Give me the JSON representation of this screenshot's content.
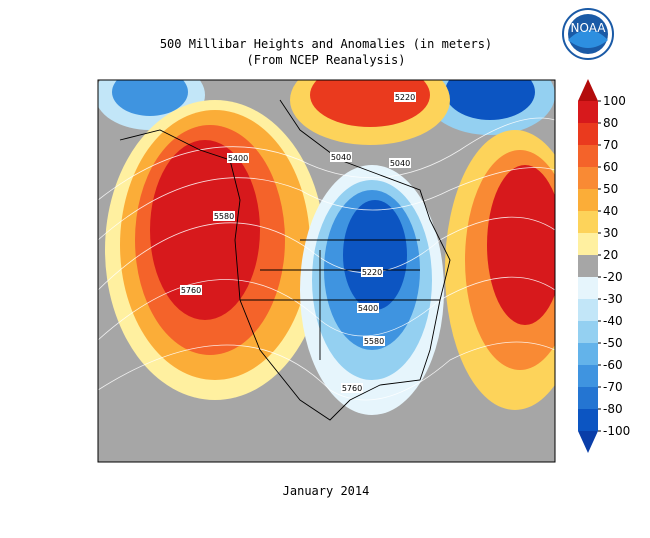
{
  "header": {
    "title": "500 Millibar Heights and Anomalies (in meters)",
    "subtitle": "(From NCEP Reanalysis)",
    "logo": "NOAA"
  },
  "map": {
    "contour_labels": [
      "5220",
      "5400",
      "5040",
      "5040",
      "5580",
      "5220",
      "5760",
      "5400",
      "5580",
      "5760"
    ]
  },
  "colorbar": {
    "ticks": [
      100,
      80,
      70,
      60,
      50,
      40,
      30,
      20,
      -20,
      -30,
      -40,
      -50,
      -60,
      -70,
      -80,
      -100
    ],
    "colors": [
      "#d7191c",
      "#ea3a1e",
      "#f4632a",
      "#f98a34",
      "#fbad38",
      "#fdd35a",
      "#fff0a0",
      "#a6a6a6",
      "#e6f5fc",
      "#c2e6f8",
      "#94d0f1",
      "#63b3ea",
      "#3f94e0",
      "#2475d2",
      "#0c55c2"
    ],
    "over_color": "#b30c0c",
    "under_color": "#0a3ea8"
  },
  "footer": {
    "date": "January 2014"
  }
}
